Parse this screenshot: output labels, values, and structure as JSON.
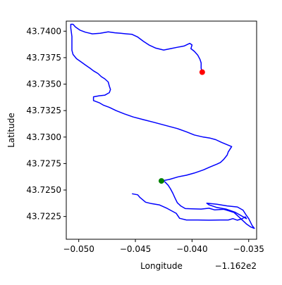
{
  "chart_data": {
    "type": "line",
    "title": "",
    "xlabel": "Longitude",
    "ylabel": "Latitude",
    "x_offset_label": "−1.162e2",
    "x_offset": -116.2,
    "xlim": [
      -116.2511,
      -116.2343
    ],
    "ylim": [
      43.72035,
      43.74095
    ],
    "x_ticks": [
      -0.05,
      -0.045,
      -0.04,
      -0.035
    ],
    "x_tick_labels": [
      "−0.050",
      "−0.045",
      "−0.040",
      "−0.035"
    ],
    "y_ticks": [
      43.7225,
      43.725,
      43.7275,
      43.73,
      43.7325,
      43.735,
      43.7375,
      43.74
    ],
    "y_tick_labels": [
      "43.7225",
      "43.7250",
      "43.7275",
      "43.7300",
      "43.7325",
      "43.7350",
      "43.7375",
      "43.7400"
    ],
    "grid": false,
    "colors": {
      "track": "#0000ff",
      "start_marker": "#008000",
      "end_marker": "#ff0000",
      "frame": "#000000"
    },
    "series": [
      {
        "kind": "line",
        "color": "#0000ff",
        "points": [
          [
            -116.2453,
            43.72465
          ],
          [
            -116.2448,
            43.72455
          ],
          [
            -116.2446,
            43.7243
          ],
          [
            -116.2441,
            43.72385
          ],
          [
            -116.2436,
            43.72372
          ],
          [
            -116.2429,
            43.7236
          ],
          [
            -116.2422,
            43.72327
          ],
          [
            -116.2414,
            43.7228
          ],
          [
            -116.2411,
            43.72233
          ],
          [
            -116.2405,
            43.72217
          ],
          [
            -116.2395,
            43.72217
          ],
          [
            -116.2385,
            43.72215
          ],
          [
            -116.2375,
            43.72217
          ],
          [
            -116.2368,
            43.72217
          ],
          [
            -116.2364,
            43.7223
          ],
          [
            -116.236,
            43.72215
          ],
          [
            -116.2356,
            43.72228
          ],
          [
            -116.2353,
            43.72247
          ],
          [
            -116.2352,
            43.7223
          ],
          [
            -116.2362,
            43.7229
          ],
          [
            -116.237,
            43.7232
          ],
          [
            -116.2378,
            43.72335
          ],
          [
            -116.2385,
            43.7236
          ],
          [
            -116.2387,
            43.72375
          ],
          [
            -116.2378,
            43.72365
          ],
          [
            -116.2369,
            43.7235
          ],
          [
            -116.236,
            43.7234
          ],
          [
            -116.2355,
            43.7231
          ],
          [
            -116.2352,
            43.7226
          ],
          [
            -116.235,
            43.7223
          ],
          [
            -116.2347,
            43.72165
          ],
          [
            -116.2345,
            43.72138
          ],
          [
            -116.2348,
            43.7215
          ],
          [
            -116.2352,
            43.7218
          ],
          [
            -116.2354,
            43.722
          ],
          [
            -116.2358,
            43.7224
          ],
          [
            -116.2363,
            43.72288
          ],
          [
            -116.2372,
            43.72318
          ],
          [
            -116.238,
            43.72312
          ],
          [
            -116.2385,
            43.72328
          ],
          [
            -116.2392,
            43.7232
          ],
          [
            -116.24,
            43.72322
          ],
          [
            -116.2406,
            43.72325
          ],
          [
            -116.241,
            43.7235
          ],
          [
            -116.2413,
            43.7238
          ],
          [
            -116.2415,
            43.72423
          ],
          [
            -116.2417,
            43.7247
          ],
          [
            -116.2419,
            43.7251
          ],
          [
            -116.2421,
            43.72545
          ],
          [
            -116.2424,
            43.72578
          ],
          [
            -116.2427,
            43.72586
          ],
          [
            -116.242,
            43.726
          ],
          [
            -116.2412,
            43.72625
          ],
          [
            -116.2405,
            43.7264
          ],
          [
            -116.2398,
            43.7266
          ],
          [
            -116.239,
            43.7269
          ],
          [
            -116.2384,
            43.72718
          ],
          [
            -116.2378,
            43.72745
          ],
          [
            -116.2375,
            43.7276
          ],
          [
            -116.2372,
            43.7279
          ],
          [
            -116.2369,
            43.7283
          ],
          [
            -116.2368,
            43.7286
          ],
          [
            -116.2365,
            43.7291
          ],
          [
            -116.2374,
            43.7295
          ],
          [
            -116.2379,
            43.72975
          ],
          [
            -116.2384,
            43.7299
          ],
          [
            -116.239,
            43.73
          ],
          [
            -116.2398,
            43.7302
          ],
          [
            -116.2405,
            43.7305
          ],
          [
            -116.2413,
            43.7308
          ],
          [
            -116.242,
            43.731
          ],
          [
            -116.2427,
            43.7312
          ],
          [
            -116.2434,
            43.7314
          ],
          [
            -116.2443,
            43.73165
          ],
          [
            -116.2452,
            43.7319
          ],
          [
            -116.246,
            43.7322
          ],
          [
            -116.2467,
            43.7325
          ],
          [
            -116.2473,
            43.7328
          ],
          [
            -116.2478,
            43.733
          ],
          [
            -116.2482,
            43.73325
          ],
          [
            -116.2487,
            43.73345
          ],
          [
            -116.2487,
            43.7338
          ],
          [
            -116.2482,
            43.7339
          ],
          [
            -116.2477,
            43.73395
          ],
          [
            -116.2473,
            43.7342
          ],
          [
            -116.2472,
            43.7345
          ],
          [
            -116.2473,
            43.7348
          ],
          [
            -116.2474,
            43.7352
          ],
          [
            -116.2477,
            43.7355
          ],
          [
            -116.248,
            43.7357
          ],
          [
            -116.2483,
            43.736
          ],
          [
            -116.2487,
            43.73625
          ],
          [
            -116.249,
            43.7365
          ],
          [
            -116.2494,
            43.7368
          ],
          [
            -116.2498,
            43.7371
          ],
          [
            -116.2502,
            43.7374
          ],
          [
            -116.2505,
            43.7378
          ],
          [
            -116.2506,
            43.7382
          ],
          [
            -116.2506,
            43.7388
          ],
          [
            -116.2506,
            43.7395
          ],
          [
            -116.2507,
            43.7403
          ],
          [
            -116.2507,
            43.74065
          ],
          [
            -116.2505,
            43.74065
          ],
          [
            -116.2503,
            43.7404
          ],
          [
            -116.2499,
            43.7401
          ],
          [
            -116.2494,
            43.7399
          ],
          [
            -116.2488,
            43.73975
          ],
          [
            -116.2481,
            43.7398
          ],
          [
            -116.2474,
            43.73993
          ],
          [
            -116.2468,
            43.73985
          ],
          [
            -116.2463,
            43.7398
          ],
          [
            -116.2458,
            43.73975
          ],
          [
            -116.2453,
            43.7397
          ],
          [
            -116.2448,
            43.73945
          ],
          [
            -116.2443,
            43.73905
          ],
          [
            -116.2438,
            43.7387
          ],
          [
            -116.2432,
            43.7384
          ],
          [
            -116.2425,
            43.73822
          ],
          [
            -116.2419,
            43.73835
          ],
          [
            -116.2413,
            43.73848
          ],
          [
            -116.2407,
            43.7386
          ],
          [
            -116.2402,
            43.73885
          ],
          [
            -116.24,
            43.7387
          ],
          [
            -116.2401,
            43.73835
          ],
          [
            -116.2398,
            43.7381
          ],
          [
            -116.2395,
            43.73775
          ],
          [
            -116.2393,
            43.73735
          ],
          [
            -116.2392,
            43.737
          ],
          [
            -116.2392,
            43.7365
          ],
          [
            -116.2391,
            43.73613
          ]
        ]
      }
    ],
    "markers": [
      {
        "name": "start-marker",
        "x": -116.2427,
        "y": 43.72586,
        "color": "#008000"
      },
      {
        "name": "end-marker",
        "x": -116.2391,
        "y": 43.73613,
        "color": "#ff0000"
      }
    ]
  }
}
